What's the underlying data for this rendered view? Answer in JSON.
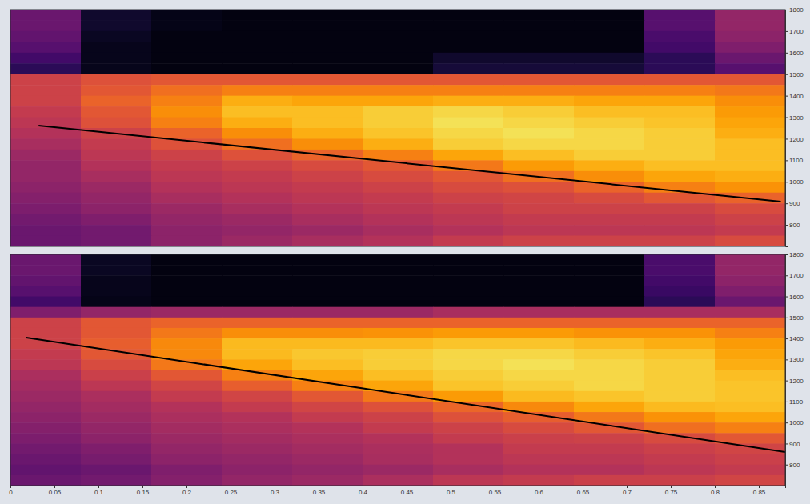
{
  "chart_data": [
    {
      "type": "heatmap",
      "x_edges": [
        0,
        0.08,
        0.16,
        0.24,
        0.32,
        0.4,
        0.48,
        0.56,
        0.64,
        0.72,
        0.8,
        0.88
      ],
      "y_edges": [
        1800,
        1750,
        1700,
        1650,
        1600,
        1550,
        1500,
        1450,
        1400,
        1350,
        1300,
        1250,
        1200,
        1150,
        1100,
        1050,
        1000,
        950,
        900,
        850,
        800,
        750,
        700
      ],
      "values": [
        [
          30,
          8,
          4,
          3,
          3,
          3,
          3,
          3,
          3,
          25,
          40
        ],
        [
          30,
          8,
          4,
          3,
          3,
          3,
          3,
          3,
          3,
          25,
          40
        ],
        [
          28,
          6,
          3,
          3,
          3,
          3,
          3,
          3,
          3,
          22,
          38
        ],
        [
          25,
          5,
          3,
          3,
          3,
          3,
          3,
          3,
          3,
          20,
          35
        ],
        [
          20,
          5,
          3,
          3,
          3,
          3,
          8,
          8,
          8,
          15,
          30
        ],
        [
          15,
          5,
          3,
          3,
          3,
          3,
          10,
          10,
          10,
          15,
          25
        ],
        [
          55,
          60,
          62,
          62,
          62,
          62,
          62,
          62,
          62,
          62,
          62
        ],
        [
          55,
          62,
          68,
          72,
          72,
          72,
          72,
          72,
          72,
          72,
          70
        ],
        [
          55,
          65,
          72,
          82,
          80,
          80,
          82,
          82,
          80,
          80,
          75
        ],
        [
          52,
          62,
          75,
          85,
          85,
          88,
          90,
          88,
          85,
          85,
          78
        ],
        [
          50,
          60,
          72,
          82,
          85,
          88,
          92,
          90,
          88,
          86,
          80
        ],
        [
          48,
          55,
          65,
          75,
          82,
          86,
          90,
          92,
          90,
          88,
          82
        ],
        [
          45,
          52,
          60,
          68,
          75,
          82,
          88,
          90,
          90,
          88,
          85
        ],
        [
          42,
          50,
          55,
          60,
          65,
          72,
          80,
          85,
          88,
          88,
          85
        ],
        [
          40,
          48,
          52,
          55,
          58,
          62,
          70,
          78,
          82,
          85,
          85
        ],
        [
          40,
          45,
          50,
          52,
          55,
          58,
          62,
          68,
          75,
          80,
          82
        ],
        [
          38,
          42,
          48,
          50,
          52,
          55,
          58,
          60,
          65,
          72,
          76
        ],
        [
          36,
          40,
          45,
          48,
          50,
          52,
          55,
          56,
          58,
          62,
          65
        ],
        [
          34,
          38,
          42,
          45,
          48,
          50,
          52,
          55,
          55,
          55,
          58
        ],
        [
          32,
          35,
          40,
          42,
          45,
          48,
          50,
          52,
          52,
          52,
          55
        ],
        [
          30,
          32,
          38,
          40,
          42,
          45,
          48,
          50,
          50,
          50,
          52
        ],
        [
          30,
          32,
          38,
          42,
          45,
          48,
          52,
          55,
          55,
          55,
          58
        ]
      ],
      "zlim": [
        0,
        100
      ],
      "xlim": [
        0,
        0.88
      ],
      "ylim": [
        700,
        1800
      ],
      "yticks": [
        800,
        900,
        1000,
        1100,
        1200,
        1300,
        1400,
        1500,
        1600,
        1700,
        1800
      ],
      "tick_labels": "y",
      "series": [
        {
          "type": "line",
          "color": "#000000",
          "line_style": "solid",
          "x": [
            0.032,
            0.875
          ],
          "values": [
            1261,
            908
          ]
        }
      ]
    },
    {
      "type": "heatmap",
      "x_edges": [
        0,
        0.08,
        0.16,
        0.24,
        0.32,
        0.4,
        0.48,
        0.56,
        0.64,
        0.72,
        0.8,
        0.88
      ],
      "y_edges": [
        1800,
        1750,
        1700,
        1650,
        1600,
        1550,
        1500,
        1450,
        1400,
        1350,
        1300,
        1250,
        1200,
        1150,
        1100,
        1050,
        1000,
        950,
        900,
        850,
        800,
        750,
        700
      ],
      "values": [
        [
          30,
          6,
          3,
          3,
          3,
          3,
          3,
          3,
          3,
          22,
          40
        ],
        [
          30,
          6,
          3,
          3,
          3,
          3,
          3,
          3,
          3,
          22,
          40
        ],
        [
          28,
          5,
          3,
          3,
          3,
          3,
          3,
          3,
          3,
          20,
          38
        ],
        [
          25,
          5,
          3,
          3,
          3,
          3,
          3,
          3,
          3,
          18,
          35
        ],
        [
          20,
          4,
          3,
          3,
          3,
          3,
          3,
          3,
          3,
          15,
          30
        ],
        [
          35,
          40,
          42,
          42,
          42,
          42,
          45,
          45,
          45,
          45,
          45
        ],
        [
          55,
          62,
          65,
          65,
          65,
          65,
          65,
          65,
          65,
          65,
          65
        ],
        [
          55,
          62,
          70,
          75,
          75,
          76,
          78,
          78,
          76,
          76,
          72
        ],
        [
          55,
          64,
          74,
          84,
          84,
          84,
          86,
          86,
          84,
          82,
          78
        ],
        [
          52,
          62,
          74,
          84,
          87,
          88,
          90,
          90,
          88,
          86,
          80
        ],
        [
          50,
          58,
          70,
          80,
          85,
          88,
          90,
          92,
          90,
          88,
          82
        ],
        [
          46,
          54,
          62,
          72,
          80,
          85,
          88,
          90,
          90,
          88,
          85
        ],
        [
          44,
          50,
          56,
          64,
          72,
          80,
          86,
          88,
          90,
          88,
          86
        ],
        [
          42,
          46,
          52,
          56,
          62,
          70,
          78,
          84,
          86,
          88,
          86
        ],
        [
          40,
          44,
          48,
          52,
          56,
          60,
          66,
          74,
          80,
          84,
          85
        ],
        [
          38,
          42,
          46,
          48,
          52,
          55,
          60,
          64,
          70,
          76,
          80
        ],
        [
          36,
          40,
          44,
          46,
          48,
          52,
          55,
          58,
          62,
          68,
          72
        ],
        [
          34,
          38,
          42,
          44,
          46,
          48,
          52,
          54,
          55,
          58,
          62
        ],
        [
          32,
          35,
          40,
          42,
          44,
          46,
          48,
          52,
          52,
          54,
          56
        ],
        [
          30,
          33,
          38,
          40,
          42,
          45,
          48,
          50,
          50,
          52,
          54
        ],
        [
          28,
          30,
          35,
          38,
          40,
          42,
          45,
          48,
          48,
          50,
          52
        ],
        [
          30,
          32,
          36,
          40,
          42,
          46,
          50,
          52,
          54,
          54,
          56
        ]
      ],
      "zlim": [
        0,
        100
      ],
      "xlim": [
        0,
        0.88
      ],
      "ylim": [
        700,
        1800
      ],
      "xticks": [
        0,
        0.05,
        0.1,
        0.15,
        0.2,
        0.25,
        0.3,
        0.35,
        0.4,
        0.45,
        0.5,
        0.55,
        0.6,
        0.65,
        0.7,
        0.75,
        0.8,
        0.85
      ],
      "yticks": [
        800,
        900,
        1000,
        1100,
        1200,
        1300,
        1400,
        1500,
        1600,
        1700,
        1800
      ],
      "series": [
        {
          "type": "line",
          "color": "#000000",
          "line_style": "solid",
          "x": [
            0.018,
            0.88
          ],
          "values": [
            1404,
            860
          ]
        }
      ]
    }
  ]
}
